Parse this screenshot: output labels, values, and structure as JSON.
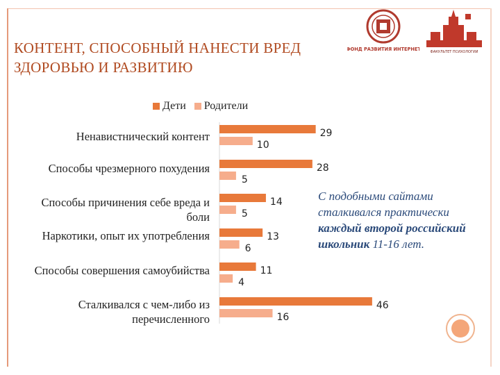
{
  "title": "КОНТЕНТ, СПОСОБНЫЙ НАНЕСТИ ВРЕД ЗДОРОВЬЮ И РАЗВИТИЮ",
  "logo_text": "ФОНД РАЗВИТИЯ ИНТЕРНЕТ",
  "logo2_text": "ФАКУЛЬТЕТ ПСИХОЛОГИИ",
  "note": {
    "part1": "С подобными сайтами сталкивался практически ",
    "bold": "каждый второй российский школьник",
    "part2": " 11-16 лет."
  },
  "colors": {
    "children": "#e8793a",
    "parents": "#f6ad8c",
    "title": "#b04a20",
    "note": "#2b4a7a"
  },
  "chart_data": {
    "type": "bar",
    "orientation": "horizontal",
    "categories": [
      "Ненавистнический контент",
      "Способы чрезмерного похудения",
      "Способы причинения себе вреда и боли",
      "Наркотики, опыт их употребления",
      "Способы совершения самоубийства",
      "Сталкивался с чем-либо из перечисленного"
    ],
    "series": [
      {
        "name": "Дети",
        "values": [
          29,
          28,
          14,
          13,
          11,
          46
        ]
      },
      {
        "name": "Родители",
        "values": [
          10,
          5,
          5,
          6,
          4,
          16
        ]
      }
    ],
    "xlim": [
      0,
      50
    ],
    "legend": "top",
    "grid": false
  }
}
